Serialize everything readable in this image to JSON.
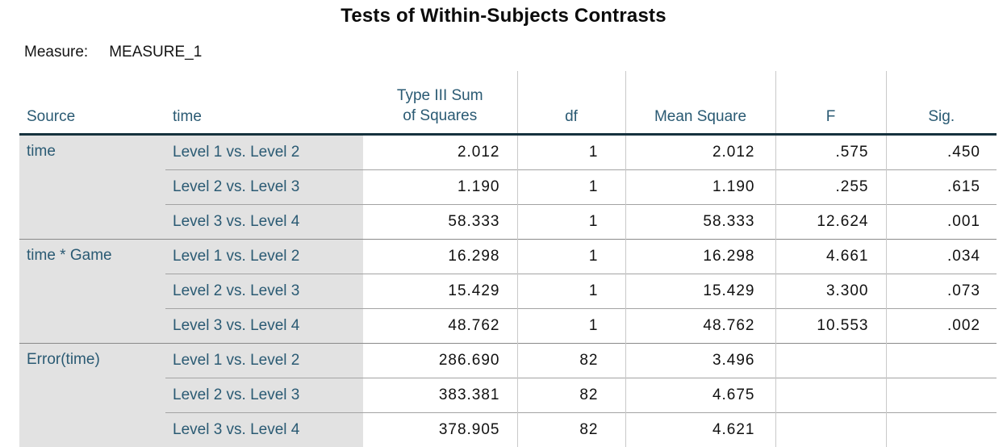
{
  "title": "Tests of Within-Subjects Contrasts",
  "measure": {
    "label": "Measure:",
    "value": "MEASURE_1"
  },
  "colors": {
    "label_teal": "#2a5a73",
    "heavy_border_navy": "#16323e",
    "row_label_background_gray": "#e2e2e2",
    "within_group_line": "#a3a3a3",
    "group_boundary_line": "#8a8a8a",
    "column_line": "#c9c9c9"
  },
  "table": {
    "header": {
      "source": "Source",
      "time": "time",
      "ss_line1": "Type III Sum",
      "ss_line2": "of Squares",
      "df": "df",
      "ms": "Mean Square",
      "f": "F",
      "sig": "Sig."
    },
    "groups": [
      {
        "source": "time",
        "rows": [
          {
            "time": "Level 1 vs. Level 2",
            "ss": "2.012",
            "df": "1",
            "ms": "2.012",
            "f": ".575",
            "sig": ".450"
          },
          {
            "time": "Level 2 vs. Level 3",
            "ss": "1.190",
            "df": "1",
            "ms": "1.190",
            "f": ".255",
            "sig": ".615"
          },
          {
            "time": "Level 3 vs. Level 4",
            "ss": "58.333",
            "df": "1",
            "ms": "58.333",
            "f": "12.624",
            "sig": ".001"
          }
        ]
      },
      {
        "source": "time * Game",
        "rows": [
          {
            "time": "Level 1 vs. Level 2",
            "ss": "16.298",
            "df": "1",
            "ms": "16.298",
            "f": "4.661",
            "sig": ".034"
          },
          {
            "time": "Level 2 vs. Level 3",
            "ss": "15.429",
            "df": "1",
            "ms": "15.429",
            "f": "3.300",
            "sig": ".073"
          },
          {
            "time": "Level 3 vs. Level 4",
            "ss": "48.762",
            "df": "1",
            "ms": "48.762",
            "f": "10.553",
            "sig": ".002"
          }
        ]
      },
      {
        "source": "Error(time)",
        "rows": [
          {
            "time": "Level 1 vs. Level 2",
            "ss": "286.690",
            "df": "82",
            "ms": "3.496",
            "f": "",
            "sig": ""
          },
          {
            "time": "Level 2 vs. Level 3",
            "ss": "383.381",
            "df": "82",
            "ms": "4.675",
            "f": "",
            "sig": ""
          },
          {
            "time": "Level 3 vs. Level 4",
            "ss": "378.905",
            "df": "82",
            "ms": "4.621",
            "f": "",
            "sig": ""
          }
        ]
      }
    ]
  }
}
